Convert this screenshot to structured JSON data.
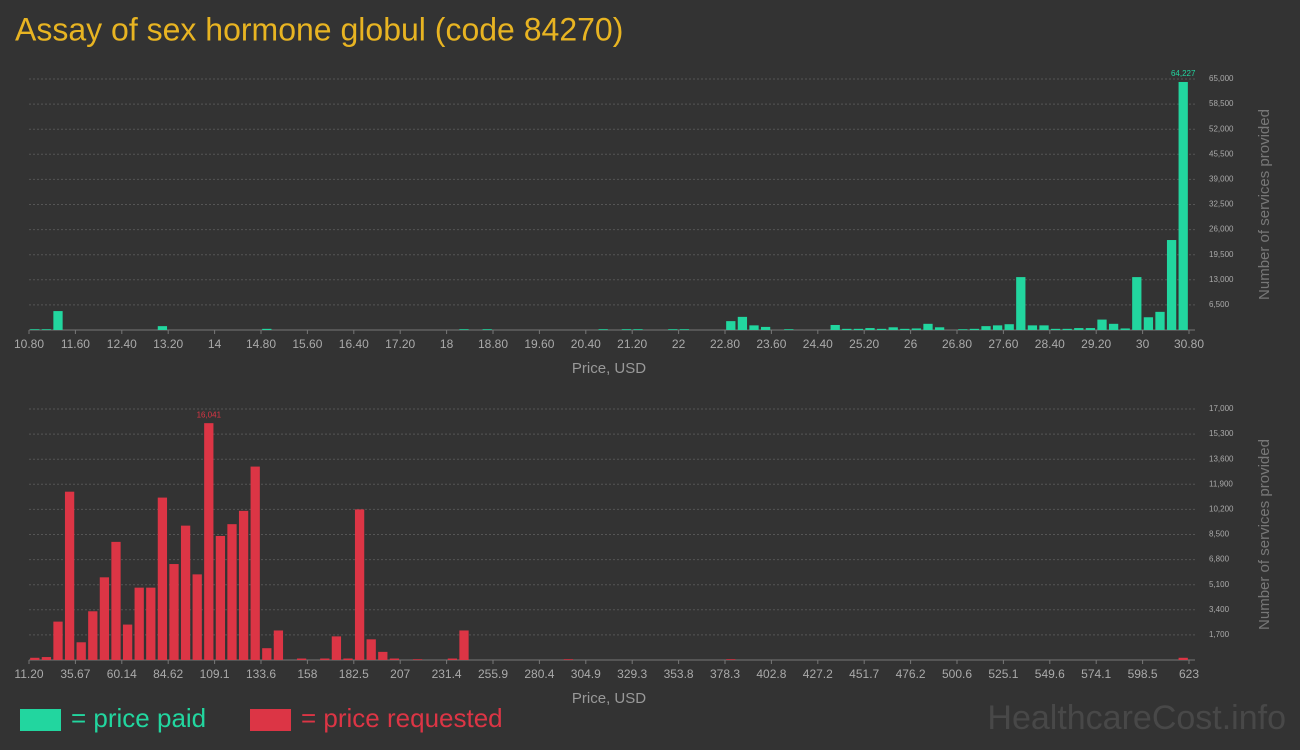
{
  "title": "Assay of sex hormone globul (code 84270)",
  "watermark": "HealthcareCost.info",
  "chart_data": [
    {
      "type": "histogram",
      "xlabel": "Price, USD",
      "ylabel": "Number of services provided",
      "grid": true,
      "bins": [
        10.8,
        11.0,
        11.2,
        11.4,
        11.6,
        11.8,
        12.0,
        12.2,
        12.4,
        12.6,
        12.8,
        13.0,
        13.2,
        13.4,
        13.6,
        13.8,
        14.0,
        14.2,
        14.4,
        14.6,
        14.8,
        15.0,
        15.2,
        15.4,
        15.6,
        15.8,
        16.0,
        16.2,
        16.4,
        16.6,
        16.8,
        17.0,
        17.2,
        17.4,
        17.6,
        17.8,
        18.0,
        18.2,
        18.4,
        18.6,
        18.8,
        19.0,
        19.2,
        19.4,
        19.6,
        19.8,
        20.0,
        20.2,
        20.4,
        20.6,
        20.8,
        21.0,
        21.2,
        21.4,
        21.6,
        21.8,
        22.0,
        22.2,
        22.4,
        22.6,
        22.8,
        23.0,
        23.2,
        23.4,
        23.6,
        23.8,
        24.0,
        24.2,
        24.4,
        24.6,
        24.8,
        25.0,
        25.2,
        25.4,
        25.6,
        25.8,
        26.0,
        26.2,
        26.4,
        26.6,
        26.8,
        27.0,
        27.2,
        27.4,
        27.6,
        27.8,
        28.0,
        28.2,
        28.4,
        28.6,
        28.8,
        29.0,
        29.2,
        29.4,
        29.6,
        29.8,
        30.0,
        30.2,
        30.4,
        30.6,
        30.8
      ],
      "series": [
        {
          "name": "= price paid",
          "color": "#22d69f",
          "values": [
            200,
            200,
            4900,
            0,
            0,
            0,
            0,
            0,
            0,
            0,
            0,
            1000,
            0,
            0,
            0,
            0,
            0,
            0,
            0,
            0,
            300,
            0,
            0,
            0,
            0,
            0,
            0,
            0,
            0,
            0,
            0,
            0,
            0,
            0,
            0,
            0,
            0,
            200,
            0,
            200,
            0,
            0,
            0,
            0,
            0,
            0,
            0,
            0,
            0,
            200,
            0,
            200,
            200,
            0,
            0,
            200,
            200,
            0,
            0,
            0,
            2300,
            3400,
            1200,
            800,
            0,
            200,
            0,
            0,
            0,
            1300,
            300,
            300,
            500,
            300,
            700,
            300,
            400,
            1600,
            700,
            0,
            200,
            300,
            1000,
            1200,
            1500,
            13700,
            1200,
            1200,
            300,
            300,
            500,
            500,
            2700,
            1600,
            400,
            13700,
            3300,
            4700,
            23300,
            64227
          ],
          "value_labels": [
            null,
            null,
            null,
            null,
            null,
            null,
            null,
            null,
            null,
            null,
            null,
            null,
            null,
            null,
            null,
            null,
            null,
            null,
            null,
            null,
            null,
            null,
            null,
            null,
            null,
            null,
            null,
            null,
            null,
            null,
            null,
            null,
            null,
            null,
            null,
            null,
            null,
            null,
            null,
            null,
            null,
            null,
            null,
            null,
            null,
            null,
            null,
            null,
            null,
            null,
            null,
            null,
            null,
            null,
            null,
            null,
            null,
            null,
            null,
            null,
            null,
            null,
            null,
            null,
            null,
            null,
            null,
            null,
            null,
            null,
            null,
            null,
            null,
            null,
            null,
            null,
            null,
            null,
            null,
            null,
            null,
            null,
            null,
            null,
            null,
            null,
            null,
            null,
            null,
            null,
            null,
            null,
            null,
            null,
            null,
            null,
            null,
            null,
            null,
            "64,227"
          ]
        }
      ],
      "xlim": [
        10.8,
        30.8
      ],
      "xticks": [
        {
          "value": 10.8,
          "label": "10.80"
        },
        {
          "value": 11.6,
          "label": "11.60"
        },
        {
          "value": 12.4,
          "label": "12.40"
        },
        {
          "value": 13.2,
          "label": "13.20"
        },
        14,
        {
          "value": 14.8,
          "label": "14.80"
        },
        {
          "value": 15.6,
          "label": "15.60"
        },
        {
          "value": 16.4,
          "label": "16.40"
        },
        {
          "value": 17.2,
          "label": "17.20"
        },
        18,
        {
          "value": 18.8,
          "label": "18.80"
        },
        {
          "value": 19.6,
          "label": "19.60"
        },
        {
          "value": 20.4,
          "label": "20.40"
        },
        {
          "value": 21.2,
          "label": "21.20"
        },
        22,
        {
          "value": 22.8,
          "label": "22.80"
        },
        {
          "value": 23.6,
          "label": "23.60"
        },
        {
          "value": 24.4,
          "label": "24.40"
        },
        {
          "value": 25.2,
          "label": "25.20"
        },
        26,
        {
          "value": 26.8,
          "label": "26.80"
        },
        {
          "value": 27.6,
          "label": "27.60"
        },
        {
          "value": 28.4,
          "label": "28.40"
        },
        {
          "value": 29.2,
          "label": "29.20"
        },
        30,
        {
          "value": 30.8,
          "label": "30.80"
        }
      ],
      "ylim": [
        0,
        65000
      ],
      "yticks": [
        {
          "value": 6500,
          "label": "6,500"
        },
        {
          "value": 13000,
          "label": "13,000"
        },
        {
          "value": 19500,
          "label": "19,500"
        },
        {
          "value": 26000,
          "label": "26,000"
        },
        {
          "value": 32500,
          "label": "32,500"
        },
        {
          "value": 39000,
          "label": "39,000"
        },
        {
          "value": 45500,
          "label": "45,500"
        },
        {
          "value": 52000,
          "label": "52,000"
        },
        {
          "value": 58500,
          "label": "58,500"
        },
        {
          "value": 65000,
          "label": "65,000"
        }
      ]
    },
    {
      "type": "histogram",
      "xlabel": "Price, USD",
      "ylabel": "Number of services provided",
      "grid": true,
      "bins": [
        11.2,
        17.318,
        23.436,
        29.554,
        35.672,
        41.79,
        47.908,
        54.026,
        60.144,
        66.262,
        72.38,
        78.498,
        84.616,
        90.734,
        96.852,
        102.97,
        109.088,
        115.206,
        121.324,
        127.442,
        133.56,
        139.678,
        145.796,
        151.914,
        158.032,
        164.15,
        170.268,
        176.386,
        182.504,
        188.622,
        194.74,
        200.858,
        206.976,
        213.094,
        219.212,
        225.33,
        231.448,
        237.566,
        243.684,
        249.802,
        255.92,
        262.038,
        268.156,
        274.274,
        280.392,
        286.51,
        292.628,
        298.746,
        304.864,
        310.982,
        317.1,
        323.218,
        329.336,
        335.454,
        341.572,
        347.69,
        353.808,
        359.926,
        366.044,
        372.162,
        378.28,
        384.398,
        390.516,
        396.634,
        402.752,
        408.87,
        414.988,
        421.106,
        427.224,
        433.342,
        439.46,
        445.578,
        451.696,
        457.814,
        463.932,
        470.05,
        476.168,
        482.286,
        488.404,
        494.522,
        500.64,
        506.758,
        512.876,
        518.994,
        525.112,
        531.23,
        537.348,
        543.466,
        549.584,
        555.702,
        561.82,
        567.938,
        574.056,
        580.174,
        586.292,
        592.41,
        598.528,
        604.646,
        610.764,
        616.882,
        623
      ],
      "series": [
        {
          "name": "= price requested",
          "color": "#dc3545",
          "values": [
            150,
            200,
            2600,
            11400,
            1200,
            3300,
            5600,
            8000,
            2400,
            4900,
            4900,
            11000,
            6500,
            9100,
            5800,
            16041,
            8400,
            9200,
            10100,
            13100,
            800,
            2000,
            0,
            100,
            0,
            100,
            1600,
            100,
            10200,
            1400,
            550,
            100,
            0,
            50,
            0,
            0,
            100,
            2000,
            0,
            0,
            0,
            0,
            0,
            0,
            0,
            0,
            50,
            0,
            0,
            0,
            0,
            0,
            0,
            0,
            0,
            0,
            0,
            0,
            0,
            0,
            50,
            0,
            0,
            0,
            0,
            0,
            0,
            0,
            0,
            0,
            0,
            0,
            0,
            0,
            0,
            0,
            0,
            0,
            0,
            0,
            0,
            0,
            0,
            0,
            0,
            0,
            0,
            0,
            0,
            0,
            0,
            0,
            0,
            0,
            0,
            0,
            0,
            0,
            0,
            150
          ],
          "value_labels": [
            null,
            null,
            null,
            null,
            null,
            null,
            null,
            null,
            null,
            null,
            null,
            null,
            null,
            null,
            null,
            "16,041",
            null,
            null,
            null,
            null,
            null,
            null,
            null,
            null,
            null,
            null,
            null,
            null,
            null,
            null,
            null,
            null,
            null,
            null,
            null,
            null,
            null,
            null,
            null,
            null,
            null,
            null,
            null,
            null,
            null,
            null,
            null,
            null,
            null,
            null,
            null,
            null,
            null,
            null,
            null,
            null,
            null,
            null,
            null,
            null,
            null,
            null,
            null,
            null,
            null,
            null,
            null,
            null,
            null,
            null,
            null,
            null,
            null,
            null,
            null,
            null,
            null,
            null,
            null,
            null,
            null,
            null,
            null,
            null,
            null,
            null,
            null,
            null,
            null,
            null,
            null,
            null,
            null,
            null,
            null,
            null,
            null,
            null,
            null,
            null
          ]
        }
      ],
      "xlim": [
        11.2,
        623
      ],
      "xticks": [
        {
          "value": 11.2,
          "label": "11.20"
        },
        {
          "value": 35.672,
          "label": "35.67"
        },
        {
          "value": 60.144,
          "label": "60.14"
        },
        {
          "value": 84.616,
          "label": "84.62"
        },
        {
          "value": 109.088,
          "label": "109.1"
        },
        {
          "value": 133.56,
          "label": "133.6"
        },
        {
          "value": 158.032,
          "label": "158"
        },
        {
          "value": 182.504,
          "label": "182.5"
        },
        {
          "value": 206.976,
          "label": "207"
        },
        {
          "value": 231.448,
          "label": "231.4"
        },
        {
          "value": 255.92,
          "label": "255.9"
        },
        {
          "value": 280.392,
          "label": "280.4"
        },
        {
          "value": 304.864,
          "label": "304.9"
        },
        {
          "value": 329.336,
          "label": "329.3"
        },
        {
          "value": 353.808,
          "label": "353.8"
        },
        {
          "value": 378.28,
          "label": "378.3"
        },
        {
          "value": 402.752,
          "label": "402.8"
        },
        {
          "value": 427.224,
          "label": "427.2"
        },
        {
          "value": 451.696,
          "label": "451.7"
        },
        {
          "value": 476.168,
          "label": "476.2"
        },
        {
          "value": 500.64,
          "label": "500.6"
        },
        {
          "value": 525.112,
          "label": "525.1"
        },
        {
          "value": 549.584,
          "label": "549.6"
        },
        {
          "value": 574.056,
          "label": "574.1"
        },
        {
          "value": 598.528,
          "label": "598.5"
        },
        623
      ],
      "ylim": [
        0,
        17000
      ],
      "yticks": [
        {
          "value": 1700,
          "label": "1,700"
        },
        {
          "value": 3400,
          "label": "3,400"
        },
        {
          "value": 5100,
          "label": "5,100"
        },
        {
          "value": 6800,
          "label": "6,800"
        },
        {
          "value": 8500,
          "label": "8,500"
        },
        {
          "value": 10200,
          "label": "10,200"
        },
        {
          "value": 11900,
          "label": "11,900"
        },
        {
          "value": 13600,
          "label": "13,600"
        },
        {
          "value": 15300,
          "label": "15,300"
        },
        {
          "value": 17000,
          "label": "17,000"
        }
      ]
    }
  ]
}
